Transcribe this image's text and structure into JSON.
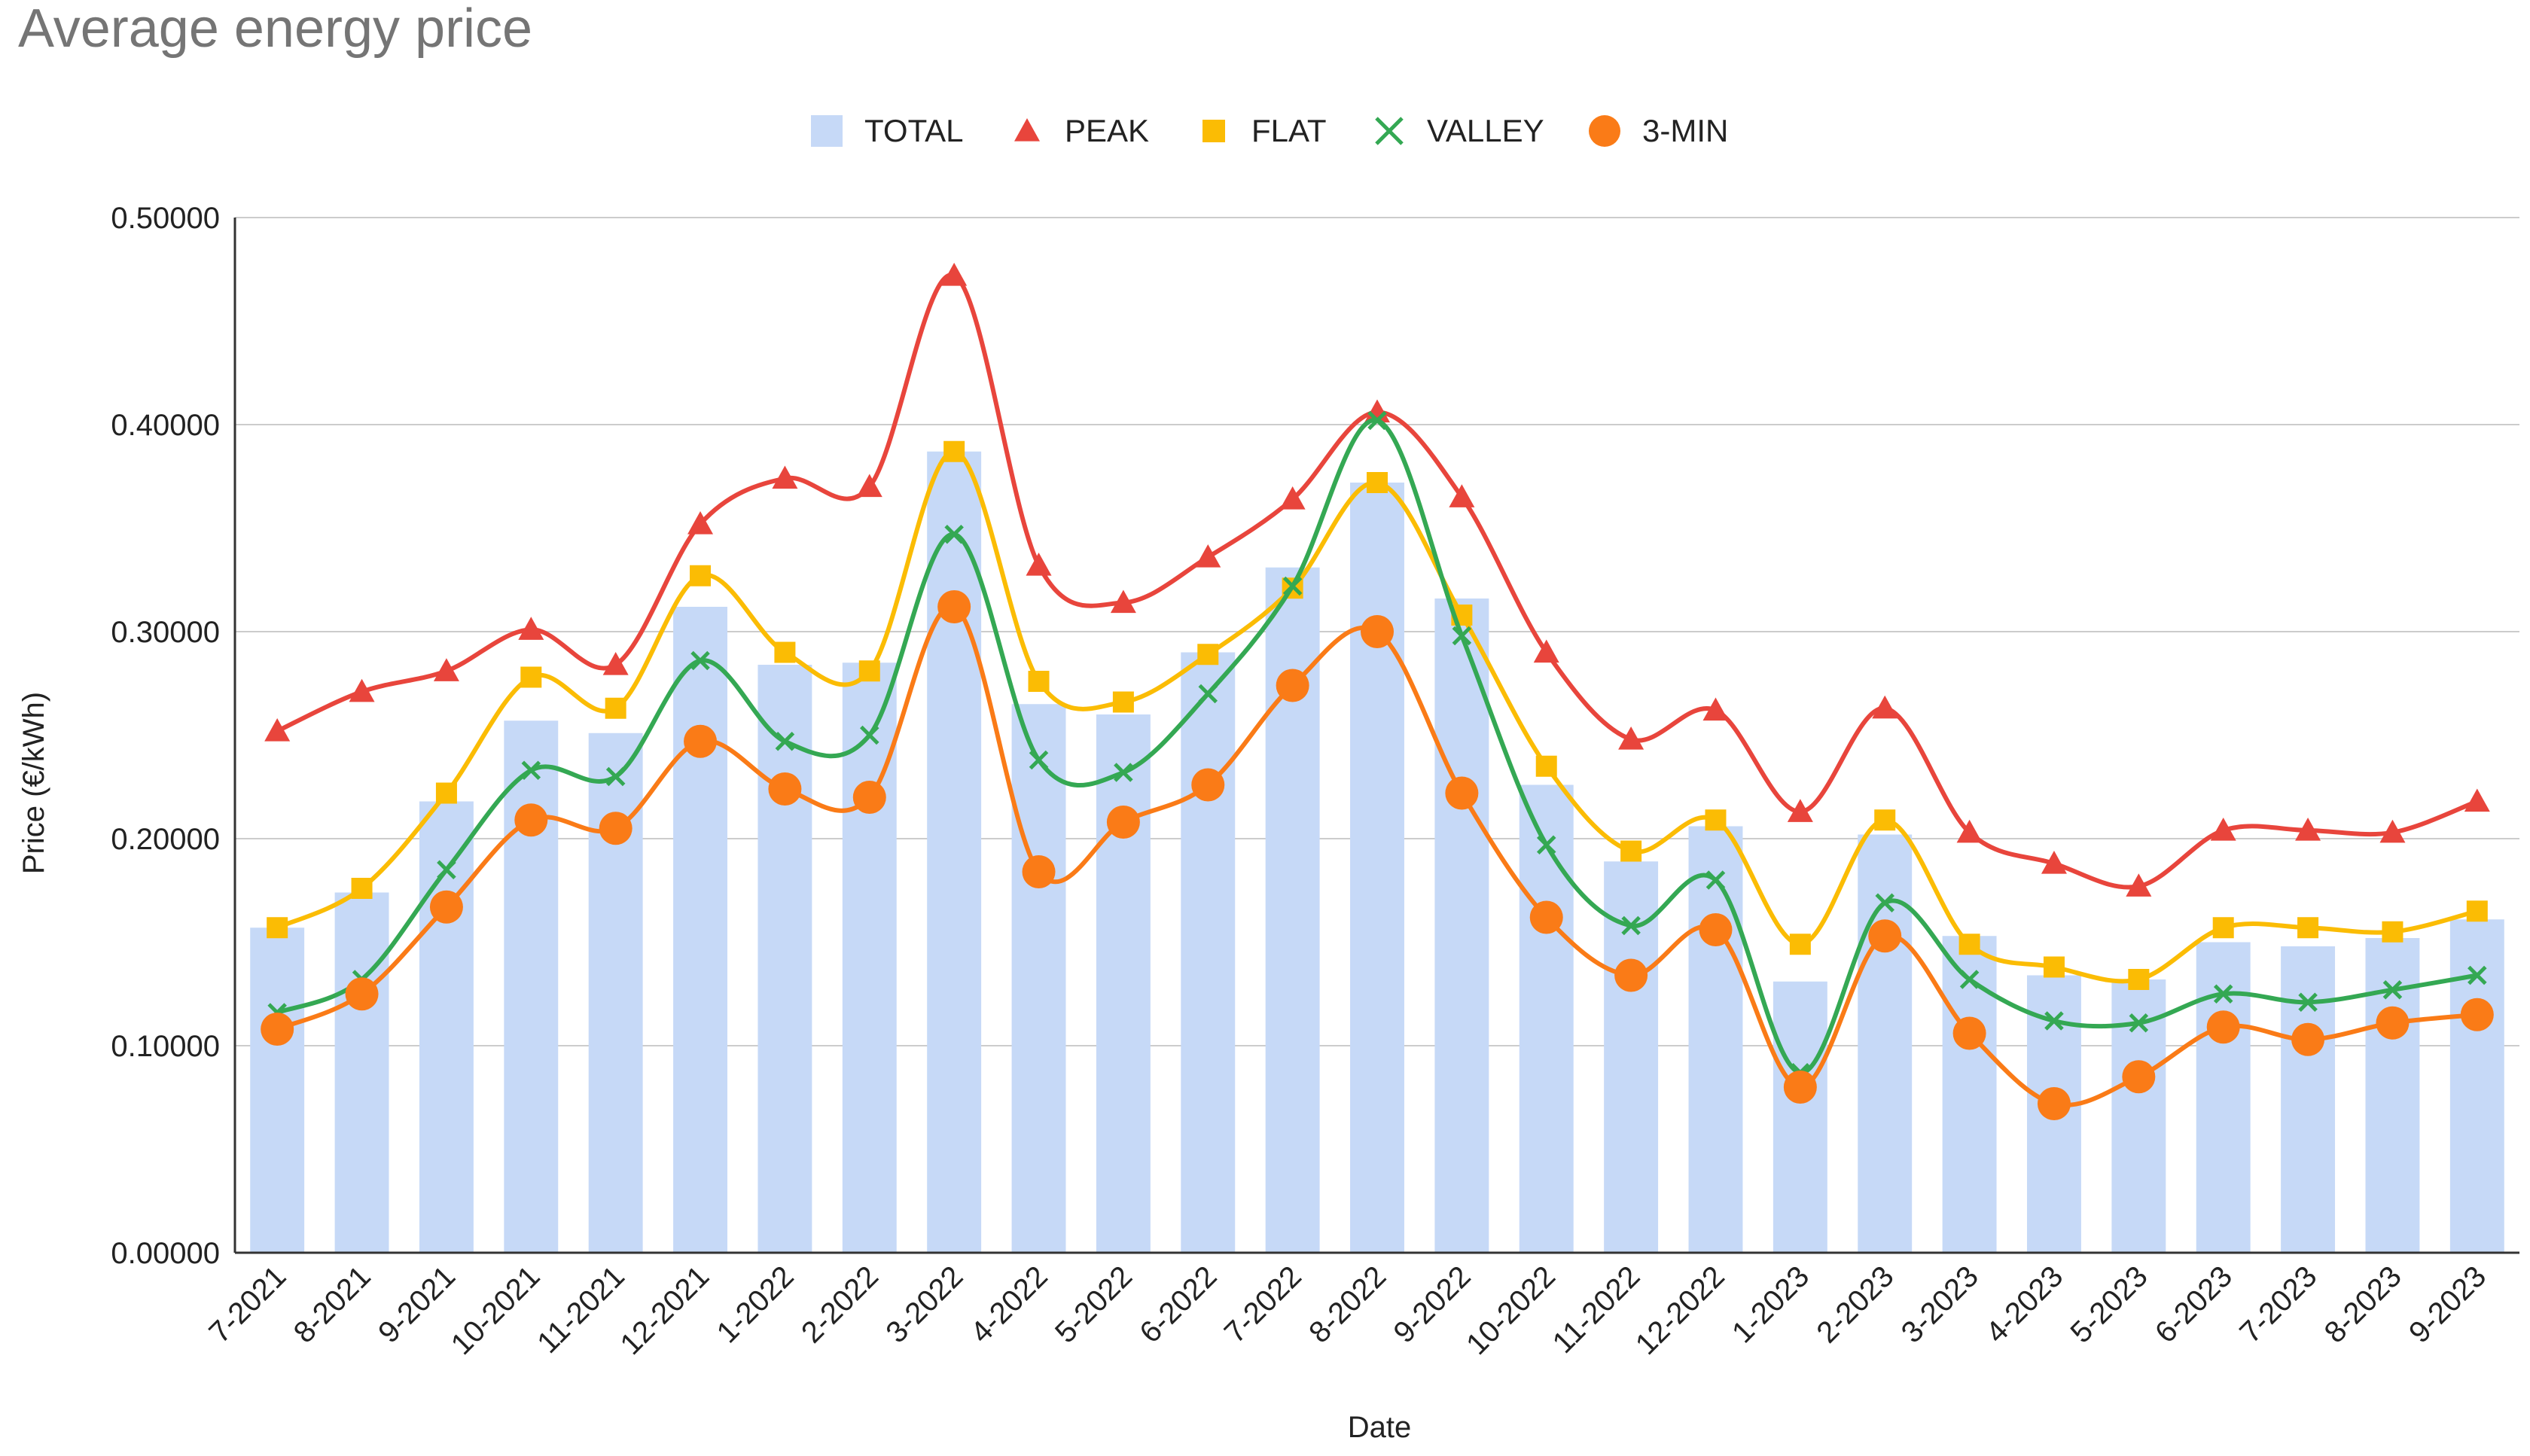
{
  "chart_data": {
    "type": "bar+line",
    "title": "Average energy price",
    "xlabel": "Date",
    "ylabel": "Price (€/kWh)",
    "ylim": [
      0,
      0.5
    ],
    "yticks": [
      "0.00000",
      "0.10000",
      "0.20000",
      "0.30000",
      "0.40000",
      "0.50000"
    ],
    "grid": true,
    "legend_position": "top-center",
    "categories": [
      "7-2021",
      "8-2021",
      "9-2021",
      "10-2021",
      "11-2021",
      "12-2021",
      "1-2022",
      "2-2022",
      "3-2022",
      "4-2022",
      "5-2022",
      "6-2022",
      "7-2022",
      "8-2022",
      "9-2022",
      "10-2022",
      "11-2022",
      "12-2022",
      "1-2023",
      "2-2023",
      "3-2023",
      "4-2023",
      "5-2023",
      "6-2023",
      "7-2023",
      "8-2023",
      "9-2023"
    ],
    "series": [
      {
        "name": "TOTAL",
        "type": "bar",
        "color": "#c6d9f7",
        "marker": "square",
        "values": [
          0.157,
          0.174,
          0.218,
          0.257,
          0.251,
          0.312,
          0.284,
          0.285,
          0.387,
          0.265,
          0.26,
          0.29,
          0.331,
          0.372,
          0.316,
          0.226,
          0.189,
          0.206,
          0.131,
          0.202,
          0.153,
          0.134,
          0.132,
          0.15,
          0.148,
          0.152,
          0.161
        ]
      },
      {
        "name": "PEAK",
        "type": "line",
        "color": "#e8453c",
        "marker": "triangle",
        "values": [
          0.252,
          0.271,
          0.281,
          0.301,
          0.284,
          0.352,
          0.374,
          0.37,
          0.472,
          0.332,
          0.314,
          0.336,
          0.364,
          0.406,
          0.365,
          0.29,
          0.248,
          0.262,
          0.213,
          0.263,
          0.203,
          0.188,
          0.177,
          0.204,
          0.204,
          0.203,
          0.218
        ]
      },
      {
        "name": "FLAT",
        "type": "line",
        "color": "#fbbc04",
        "marker": "square",
        "values": [
          0.157,
          0.176,
          0.222,
          0.278,
          0.263,
          0.327,
          0.29,
          0.281,
          0.387,
          0.276,
          0.266,
          0.289,
          0.321,
          0.372,
          0.308,
          0.235,
          0.194,
          0.209,
          0.149,
          0.209,
          0.149,
          0.138,
          0.132,
          0.157,
          0.157,
          0.155,
          0.165
        ]
      },
      {
        "name": "VALLEY",
        "type": "line",
        "color": "#34a853",
        "marker": "x",
        "values": [
          0.116,
          0.132,
          0.185,
          0.233,
          0.23,
          0.286,
          0.247,
          0.25,
          0.347,
          0.238,
          0.232,
          0.27,
          0.322,
          0.402,
          0.298,
          0.197,
          0.158,
          0.18,
          0.087,
          0.169,
          0.132,
          0.112,
          0.111,
          0.125,
          0.121,
          0.127,
          0.134
        ]
      },
      {
        "name": "3-MIN",
        "type": "line",
        "color": "#fa7b17",
        "marker": "circle",
        "values": [
          0.108,
          0.125,
          0.167,
          0.209,
          0.205,
          0.247,
          0.224,
          0.22,
          0.312,
          0.184,
          0.208,
          0.226,
          0.274,
          0.3,
          0.222,
          0.162,
          0.134,
          0.156,
          0.08,
          0.153,
          0.106,
          0.072,
          0.085,
          0.109,
          0.103,
          0.111,
          0.115
        ]
      }
    ]
  },
  "colors": {
    "title": "#757575",
    "text": "#222222",
    "grid": "#cccccc",
    "axis": "#333333"
  }
}
